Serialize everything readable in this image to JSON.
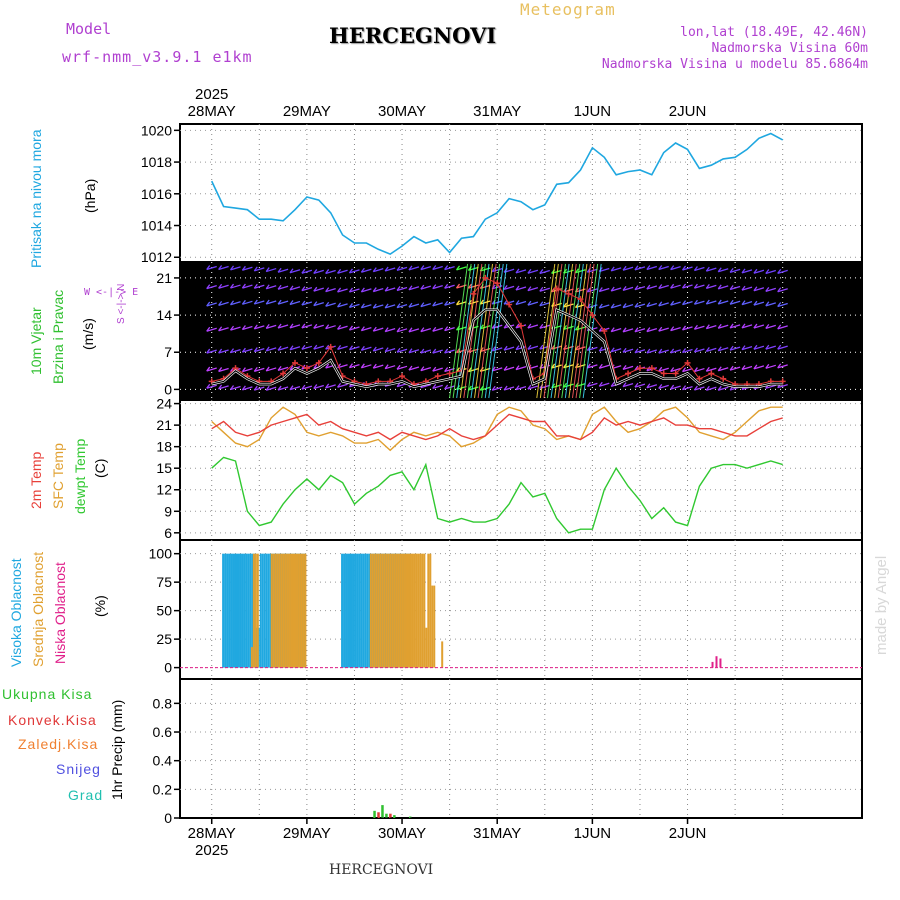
{
  "header": {
    "model_label": "Model",
    "model_name": "wrf-nmm_v3.9.1 e1km",
    "title": "HERCEGNOVI",
    "subtitle": "Meteogram",
    "coords": "lon,lat (18.49E, 42.46N)",
    "altitude": "Nadmorska Visina 60m",
    "model_altitude": "Nadmorska Visina u modelu 85.6864m",
    "footer": "HERCEGNOVI",
    "watermark": "made by Angel"
  },
  "colors": {
    "pressure": "#1fa7e0",
    "temp2m": "#e8403a",
    "sfc_temp": "#e0a030",
    "dewpoint": "#30c830",
    "cloud_high": "#20a8e0",
    "cloud_mid": "#e0a030",
    "cloud_low": "#e0208a",
    "precip_total": "#30c030",
    "precip_conv": "#e03838",
    "precip_ice": "#f08030",
    "precip_snow": "#5050e0",
    "precip_grad": "#20c0b0",
    "wind_speed": "#000000",
    "wind_gust": "#e03838"
  },
  "x_axis": {
    "year": "2025",
    "dates": [
      "28MAY",
      "29MAY",
      "30MAY",
      "31MAY",
      "1JUN",
      "2JUN"
    ]
  },
  "panels": {
    "pressure": {
      "ylabel_1": "Pritisak na nivou mora",
      "ylabel_2": "(hPa)",
      "ticks": [
        "1012",
        "1014",
        "1016",
        "1018",
        "1020"
      ]
    },
    "wind": {
      "ylabel_1": "10m Vjetar",
      "ylabel_2": "Brzina i Pravac",
      "ylabel_3": "(m/s)",
      "ticks": [
        "0",
        "7",
        "14",
        "21"
      ],
      "compass": "W <-|-> E",
      "compass_ns": "S <-|-> N"
    },
    "temp": {
      "ylabel_1": "2m Temp",
      "ylabel_2": "SFC Temp",
      "ylabel_3": "dewpt Temp",
      "ylabel_4": "(C)",
      "ticks": [
        "6",
        "9",
        "12",
        "15",
        "18",
        "21",
        "24"
      ]
    },
    "cloud": {
      "ylabel_1": "Visoka Oblacnost",
      "ylabel_2": "Srednja Oblacnost",
      "ylabel_3": "Niska Oblacnost",
      "ylabel_4": "(%)",
      "ticks": [
        "0",
        "25",
        "50",
        "75",
        "100"
      ]
    },
    "precip": {
      "ylabel": "1hr Precip (mm)",
      "ticks": [
        "0",
        "0.2",
        "0.4",
        "0.6",
        "0.8"
      ],
      "legend": [
        "Ukupna Kisa",
        "Konvek.Kisa",
        "Zaledj.Kisa",
        "Snijeg",
        "Grad"
      ]
    }
  },
  "chart_data": [
    {
      "type": "line",
      "ylim": [
        1011.7,
        1020.4
      ],
      "x_hours": [
        0,
        3,
        6,
        9,
        12,
        15,
        18,
        21,
        24,
        27,
        30,
        33,
        36,
        39,
        42,
        45,
        48,
        51,
        54,
        57,
        60,
        63,
        66,
        69,
        72,
        75,
        78,
        81,
        84,
        87,
        90,
        93,
        96,
        99,
        102,
        105,
        108,
        111,
        114,
        117,
        120,
        123,
        126,
        129,
        132,
        135,
        138,
        141,
        144
      ],
      "series": [
        {
          "values": [
            1016.8,
            1015.2,
            1015.1,
            1015.0,
            1014.4,
            1014.4,
            1014.3,
            1015.0,
            1015.8,
            1015.6,
            1014.8,
            1013.4,
            1012.9,
            1012.9,
            1012.5,
            1012.2,
            1012.7,
            1013.3,
            1012.9,
            1013.1,
            1012.3,
            1013.2,
            1013.3,
            1014.4,
            1014.8,
            1015.7,
            1015.5,
            1015.0,
            1015.3,
            1016.6,
            1016.7,
            1017.5,
            1018.9,
            1018.3,
            1017.2,
            1017.4,
            1017.5,
            1017.2,
            1018.6,
            1019.2,
            1018.8,
            1017.6,
            1017.8,
            1018.2,
            1018.3,
            1018.8,
            1019.5,
            1019.8,
            1019.4
          ]
        }
      ]
    },
    {
      "type": "line",
      "ylim": [
        -2,
        24
      ],
      "x_hours": [
        0,
        3,
        6,
        9,
        12,
        15,
        18,
        21,
        24,
        27,
        30,
        33,
        36,
        39,
        42,
        45,
        48,
        51,
        54,
        57,
        60,
        63,
        66,
        69,
        72,
        75,
        78,
        81,
        84,
        87,
        90,
        93,
        96,
        99,
        102,
        105,
        108,
        111,
        114,
        117,
        120,
        123,
        126,
        129,
        132,
        135,
        138,
        141,
        144
      ],
      "series": [
        {
          "values": [
            1,
            1.5,
            3.5,
            2,
            1,
            1,
            2,
            4,
            3,
            4,
            5.5,
            1.5,
            1,
            0.5,
            1,
            1,
            1.5,
            0.5,
            1,
            1.5,
            2,
            2.5,
            13,
            15,
            15,
            12,
            9,
            1,
            2,
            15,
            14,
            13,
            11,
            9,
            1,
            2,
            3,
            3,
            2,
            2,
            3,
            1,
            2,
            1,
            0.5,
            0.5,
            0.5,
            1,
            1
          ]
        },
        {
          "values": [
            1.5,
            2,
            4,
            2.5,
            1.5,
            1.5,
            3,
            5,
            4,
            5,
            8,
            2.5,
            1.5,
            1,
            1.5,
            1.5,
            2.5,
            1,
            1.5,
            2.5,
            3,
            3.5,
            18,
            21,
            20,
            16,
            12,
            2,
            3,
            19,
            18,
            17,
            14,
            11,
            2,
            3,
            4,
            4,
            3,
            3,
            5,
            2,
            3,
            2,
            1,
            1,
            1,
            1.5,
            1.5
          ]
        }
      ]
    },
    {
      "type": "line",
      "ylim": [
        5,
        24.5
      ],
      "x_hours": [
        0,
        3,
        6,
        9,
        12,
        15,
        18,
        21,
        24,
        27,
        30,
        33,
        36,
        39,
        42,
        45,
        48,
        51,
        54,
        57,
        60,
        63,
        66,
        69,
        72,
        75,
        78,
        81,
        84,
        87,
        90,
        93,
        96,
        99,
        102,
        105,
        108,
        111,
        114,
        117,
        120,
        123,
        126,
        129,
        132,
        135,
        138,
        141,
        144
      ],
      "series": [
        {
          "values": [
            20.5,
            21.5,
            20,
            19.5,
            20,
            21,
            21.5,
            22,
            22.5,
            21,
            21.5,
            20.5,
            20,
            19.5,
            20,
            19,
            20,
            19.5,
            19,
            19.5,
            20.5,
            19.5,
            19,
            19.5,
            21,
            22.5,
            22,
            21.5,
            21.5,
            19.5,
            19.5,
            19,
            20,
            22,
            21,
            21.5,
            21,
            21.5,
            22,
            21,
            21,
            20.5,
            20.5,
            20,
            19.5,
            19.5,
            20.5,
            21.5,
            22
          ]
        },
        {
          "values": [
            21.5,
            20,
            18.5,
            18,
            19,
            22,
            23.5,
            22.5,
            20,
            19.5,
            20,
            19.5,
            18.5,
            18.5,
            19,
            17.5,
            19,
            20,
            19.5,
            20,
            19.5,
            18,
            18.5,
            19.5,
            22.5,
            23.5,
            23,
            21,
            20.5,
            19,
            19.5,
            19,
            22.5,
            23.5,
            21.5,
            20,
            20.5,
            21.5,
            23,
            23.5,
            22,
            20,
            19.5,
            19,
            20,
            21.5,
            23,
            23.5,
            23.5
          ]
        },
        {
          "values": [
            15,
            16.5,
            16,
            9,
            7,
            7.5,
            10,
            12,
            13.5,
            12,
            14,
            13,
            10,
            11.5,
            12.5,
            14,
            14.5,
            12,
            15.5,
            8,
            7.5,
            8,
            7.5,
            7.5,
            8,
            10,
            13,
            11,
            11.5,
            8,
            6,
            6.5,
            6.5,
            12,
            15,
            12.5,
            10.5,
            8,
            9.5,
            7.5,
            7,
            12.5,
            15,
            15.5,
            15.5,
            15,
            15.5,
            16,
            15.5
          ]
        }
      ]
    },
    {
      "type": "bar",
      "ylim": [
        0,
        100
      ],
      "series": [
        {
          "x_hours": [
            3,
            3.5,
            4,
            4.5,
            5,
            5.5,
            6,
            6.5,
            7,
            7.5,
            8,
            8.5,
            9,
            9.5,
            10,
            10.5,
            11,
            11.5,
            12,
            12.5,
            13,
            13.5,
            14,
            14.5,
            15,
            15.5,
            16,
            16.5,
            17,
            17.5,
            18,
            18.5,
            19,
            19.5,
            20,
            20.5,
            21,
            21.5,
            22,
            22.5,
            23,
            23.5,
            33,
            33.5,
            34,
            34.5,
            35,
            35.5,
            36,
            36.5,
            37,
            37.5,
            38,
            38.5,
            39,
            39.5,
            40,
            40.5,
            41,
            41.5,
            42,
            42.5,
            43,
            43.5,
            44,
            44.5,
            45,
            45.5,
            46,
            46.5,
            47,
            47.5,
            48,
            48.5,
            49,
            49.5,
            50
          ],
          "values": [
            100,
            100,
            100,
            100,
            100,
            100,
            100,
            100,
            100,
            100,
            100,
            100,
            100,
            100,
            100,
            100,
            100,
            35,
            35,
            100,
            100,
            100,
            100,
            100,
            100,
            100,
            100,
            100,
            100,
            100,
            100,
            100,
            100,
            100,
            100,
            100,
            100,
            100,
            100,
            100,
            100,
            100,
            100,
            100,
            100,
            100,
            100,
            100,
            100,
            100,
            100,
            100,
            100,
            100,
            100,
            100,
            100,
            100,
            100,
            100,
            100,
            100,
            100,
            100,
            100,
            100,
            100,
            100,
            100,
            100,
            100,
            100,
            100,
            100,
            100,
            100,
            100
          ]
        },
        {
          "x_hours": [
            10,
            10.5,
            11,
            11.5,
            15,
            15.5,
            16,
            16.5,
            17,
            17.5,
            18,
            18.5,
            19,
            19.5,
            20,
            20.5,
            21,
            21.5,
            22,
            22.5,
            23,
            23.5,
            40,
            40.5,
            41,
            41.5,
            42,
            42.5,
            43,
            43.5,
            44,
            44.5,
            45,
            45.5,
            46,
            46.5,
            47,
            47.5,
            48,
            48.5,
            49,
            49.5,
            50,
            50.5,
            51,
            51.5,
            52,
            52.5,
            53,
            53.5,
            54,
            54.5,
            55,
            55.5,
            56,
            58
          ],
          "values": [
            18,
            100,
            100,
            100,
            100,
            100,
            100,
            100,
            100,
            100,
            100,
            100,
            100,
            100,
            100,
            100,
            100,
            100,
            100,
            100,
            100,
            100,
            100,
            100,
            100,
            100,
            100,
            100,
            100,
            100,
            100,
            100,
            100,
            100,
            100,
            100,
            100,
            100,
            100,
            100,
            100,
            100,
            100,
            100,
            100,
            100,
            100,
            100,
            100,
            100,
            35,
            100,
            100,
            72,
            72,
            23
          ]
        },
        {
          "x_hours": [
            126,
            127,
            128
          ],
          "values": [
            5,
            10,
            8
          ]
        }
      ]
    },
    {
      "type": "bar",
      "ylim": [
        0,
        0.97
      ],
      "series": [
        {
          "x_hours": [
            41,
            43,
            44,
            46,
            50
          ],
          "values": [
            0.05,
            0.09,
            0.03,
            0.02,
            0.01
          ]
        },
        {
          "x_hours": [
            42,
            45
          ],
          "values": [
            0.04,
            0.03
          ]
        }
      ]
    }
  ]
}
